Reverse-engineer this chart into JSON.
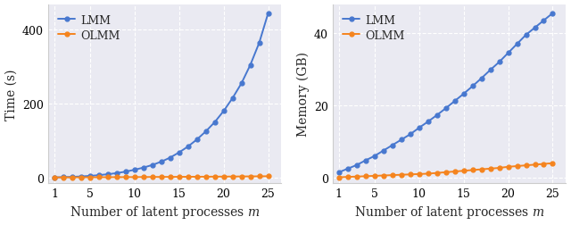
{
  "m_values": [
    1,
    2,
    3,
    4,
    5,
    6,
    7,
    8,
    9,
    10,
    11,
    12,
    13,
    14,
    15,
    16,
    17,
    18,
    19,
    20,
    21,
    22,
    23,
    24,
    25
  ],
  "lmm_time": [
    0.5,
    1.0,
    1.8,
    3.0,
    4.5,
    6.5,
    9.0,
    12.0,
    16.0,
    21.0,
    27.0,
    34.0,
    43.0,
    54.0,
    68.0,
    84.0,
    103.0,
    125.0,
    150.0,
    180.0,
    215.0,
    255.0,
    305.0,
    365.0,
    445.0
  ],
  "olmm_time": [
    0.3,
    0.4,
    0.5,
    0.6,
    0.7,
    0.8,
    0.9,
    1.0,
    1.1,
    1.2,
    1.3,
    1.5,
    1.6,
    1.7,
    1.8,
    2.0,
    2.1,
    2.2,
    2.4,
    2.5,
    2.7,
    2.9,
    3.1,
    3.3,
    3.5
  ],
  "lmm_mem": [
    1.5,
    2.5,
    3.5,
    4.8,
    6.0,
    7.5,
    9.0,
    10.5,
    12.0,
    13.8,
    15.5,
    17.3,
    19.2,
    21.2,
    23.2,
    25.3,
    27.5,
    29.8,
    32.0,
    34.5,
    37.0,
    39.5,
    41.5,
    43.5,
    45.5
  ],
  "olmm_mem": [
    0.1,
    0.2,
    0.3,
    0.4,
    0.5,
    0.6,
    0.7,
    0.8,
    0.9,
    1.0,
    1.1,
    1.3,
    1.5,
    1.7,
    1.9,
    2.1,
    2.3,
    2.5,
    2.7,
    3.0,
    3.2,
    3.4,
    3.6,
    3.8,
    4.0
  ],
  "lmm_color": "#4878cf",
  "olmm_color": "#f5841e",
  "lmm_label": "LMM",
  "olmm_label": "OLMM",
  "time_ylabel": "Time (s)",
  "mem_ylabel": "Memory (GB)",
  "xlabel": "Number of latent processes $m$",
  "time_yticks": [
    0,
    200,
    400
  ],
  "mem_yticks": [
    0,
    20,
    40
  ],
  "xticks": [
    1,
    5,
    10,
    15,
    20,
    25
  ],
  "bg_color": "#eaeaf2",
  "legend_bg": "#eaeaf2",
  "time_ylim": [
    -15,
    470
  ],
  "mem_ylim": [
    -1.5,
    48
  ],
  "xlim": [
    0.3,
    26.5
  ]
}
